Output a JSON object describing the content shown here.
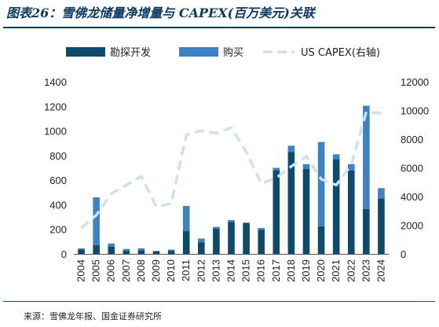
{
  "header": {
    "title": "图表26：雪佛龙储量净增量与 CAPEX(百万美元)关联",
    "source": "来源：雪佛龙年报、国金证券研究所"
  },
  "chart_data": {
    "type": "bar",
    "stacked": true,
    "categories": [
      "2004",
      "2005",
      "2006",
      "2007",
      "2008",
      "2009",
      "2010",
      "2011",
      "2012",
      "2013",
      "2014",
      "2015",
      "2016",
      "2017",
      "2018",
      "2019",
      "2020",
      "2021",
      "2022",
      "2023",
      "2024"
    ],
    "series": [
      {
        "name": "勘探开发",
        "kind": "bar",
        "axis": "left",
        "color": "#0d4a6b",
        "values": [
          35,
          70,
          60,
          25,
          30,
          20,
          25,
          185,
          95,
          205,
          260,
          250,
          195,
          680,
          830,
          690,
          225,
          770,
          680,
          365,
          450
        ]
      },
      {
        "name": "购买",
        "kind": "bar",
        "axis": "left",
        "color": "#3f82c4",
        "values": [
          10,
          390,
          25,
          15,
          15,
          5,
          10,
          205,
          30,
          15,
          15,
          5,
          15,
          20,
          50,
          40,
          685,
          40,
          50,
          840,
          85
        ]
      },
      {
        "name": "US CAPEX(右轴)",
        "kind": "line",
        "axis": "right",
        "color": "#cfe0f2",
        "dashed": true,
        "values": [
          1800,
          2700,
          4200,
          4800,
          5400,
          3300,
          3500,
          8300,
          8600,
          8400,
          8800,
          7100,
          4900,
          5300,
          6100,
          6800,
          5200,
          4800,
          6200,
          9900,
          9800
        ]
      }
    ],
    "left_axis": {
      "min": 0,
      "max": 1400,
      "ticks": [
        0,
        200,
        400,
        600,
        800,
        1000,
        1200,
        1400
      ]
    },
    "right_axis": {
      "min": 0,
      "max": 12000,
      "ticks": [
        0,
        2000,
        4000,
        6000,
        8000,
        10000,
        12000
      ]
    },
    "legend": {
      "position": "top",
      "items": [
        "勘探开发",
        "购买",
        "US CAPEX(右轴)"
      ]
    },
    "grid": false
  }
}
